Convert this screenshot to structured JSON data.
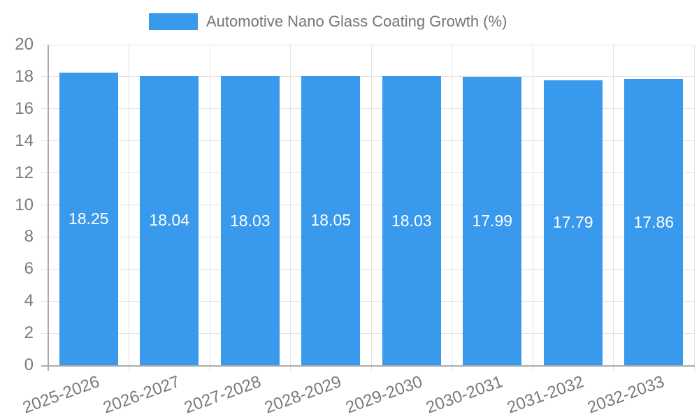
{
  "legend": {
    "label": "Automotive Nano Glass Coating Growth (%)"
  },
  "chart_data": {
    "type": "bar",
    "title": "Automotive Nano Glass Coating Growth (%)",
    "categories": [
      "2025-2026",
      "2026-2027",
      "2027-2028",
      "2028-2029",
      "2029-2030",
      "2030-2031",
      "2031-2032",
      "2032-2033"
    ],
    "values": [
      18.25,
      18.04,
      18.03,
      18.05,
      18.03,
      17.99,
      17.79,
      17.86
    ],
    "value_label_decimals": 2,
    "xlabel": "",
    "ylabel": "",
    "ylim": [
      0,
      20
    ],
    "ytick_step": 2,
    "yticks": [
      0,
      2,
      4,
      6,
      8,
      10,
      12,
      14,
      16,
      18,
      20
    ],
    "grid": true,
    "legend_position": "top-center",
    "x_tick_rotation_deg": -20,
    "value_labels_inside_bars": true
  },
  "colors": {
    "bar": "#3999ec",
    "grid": "#e2e2e2",
    "axis": "#ababab",
    "tick_text": "#7a7a7a",
    "legend_text": "#757575",
    "value_text": "#ffffff",
    "background": "#ffffff"
  }
}
